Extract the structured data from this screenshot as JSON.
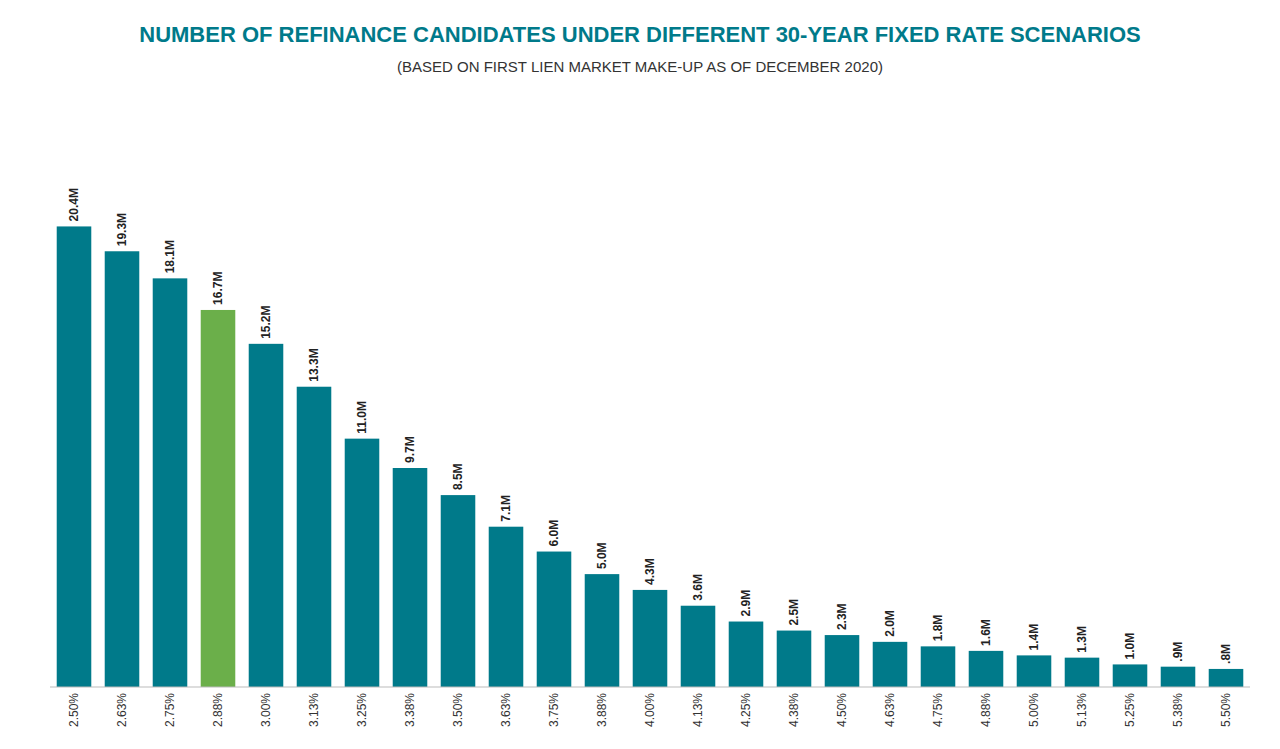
{
  "chart_data": {
    "type": "bar",
    "title": "NUMBER OF REFINANCE CANDIDATES UNDER DIFFERENT 30-YEAR FIXED RATE SCENARIOS",
    "subtitle": "(BASED ON FIRST LIEN MARKET MAKE-UP AS OF DECEMBER 2020)",
    "categories": [
      "2.50%",
      "2.63%",
      "2.75%",
      "2.88%",
      "3.00%",
      "3.13%",
      "3.25%",
      "3.38%",
      "3.50%",
      "3.63%",
      "3.75%",
      "3.88%",
      "4.00%",
      "4.13%",
      "4.25%",
      "4.38%",
      "4.50%",
      "4.63%",
      "4.75%",
      "4.88%",
      "5.00%",
      "5.13%",
      "5.25%",
      "5.38%",
      "5.50%"
    ],
    "values": [
      20.4,
      19.3,
      18.1,
      16.7,
      15.2,
      13.3,
      11.0,
      9.7,
      8.5,
      7.1,
      6.0,
      5.0,
      4.3,
      3.6,
      2.9,
      2.5,
      2.3,
      2.0,
      1.8,
      1.6,
      1.4,
      1.3,
      1.0,
      0.9,
      0.8
    ],
    "value_labels": [
      "20.4M",
      "19.3M",
      "18.1M",
      "16.7M",
      "15.2M",
      "13.3M",
      "11.0M",
      "9.7M",
      "8.5M",
      "7.1M",
      "6.0M",
      "5.0M",
      "4.3M",
      "3.6M",
      "2.9M",
      "2.5M",
      "2.3M",
      "2.0M",
      "1.8M",
      "1.6M",
      "1.4M",
      "1.3M",
      "1.0M",
      ".9M",
      ".8M"
    ],
    "colors": [
      "#007A8A",
      "#007A8A",
      "#007A8A",
      "#6BAF4A",
      "#007A8A",
      "#007A8A",
      "#007A8A",
      "#007A8A",
      "#007A8A",
      "#007A8A",
      "#007A8A",
      "#007A8A",
      "#007A8A",
      "#007A8A",
      "#007A8A",
      "#007A8A",
      "#007A8A",
      "#007A8A",
      "#007A8A",
      "#007A8A",
      "#007A8A",
      "#007A8A",
      "#007A8A",
      "#007A8A",
      "#007A8A"
    ],
    "ylim": [
      0,
      26
    ],
    "data_labels": true,
    "tick_labels": "x",
    "grid": false
  }
}
